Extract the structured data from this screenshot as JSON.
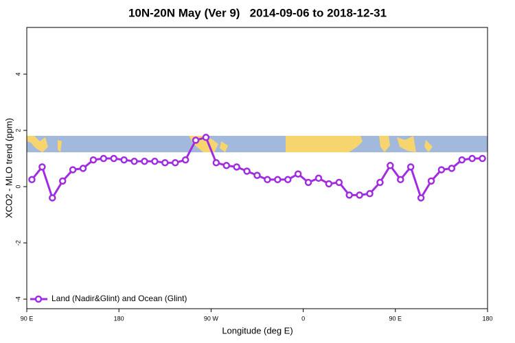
{
  "chart_data": {
    "type": "line",
    "title": "10N-20N May (Ver 9)   2014-09-06 to 2018-12-31",
    "x_label": "Longitude (deg E)",
    "y_label": "XCO2 - MLO trend (ppm)",
    "xlim": [
      90,
      540
    ],
    "ylim": [
      -4.34,
      5.66
    ],
    "xticks": [
      {
        "value": 90,
        "label": "90 E"
      },
      180,
      {
        "value": 270,
        "label": "90 W"
      },
      {
        "value": 360,
        "label": "0"
      },
      {
        "value": 450,
        "label": "90 E"
      },
      {
        "value": 540,
        "label": "180"
      }
    ],
    "yticks": [
      -4,
      -2,
      0,
      2,
      4
    ],
    "legend_position": "bottom-left",
    "x": [
      95,
      105,
      115,
      125,
      135,
      145,
      155,
      165,
      175,
      185,
      195,
      205,
      215,
      225,
      235,
      245,
      255,
      265,
      275,
      285,
      295,
      305,
      315,
      325,
      335,
      345,
      355,
      365,
      375,
      385,
      395,
      405,
      415,
      425,
      435,
      445,
      455,
      465,
      475,
      485,
      495,
      505,
      515,
      525,
      535
    ],
    "series": [
      {
        "name": "Land (Nadir&Glint) and Ocean (Glint)",
        "color": "#a02be0",
        "values": [
          0.25,
          0.7,
          -0.4,
          0.2,
          0.6,
          0.65,
          0.95,
          1.0,
          1.0,
          0.95,
          0.9,
          0.9,
          0.9,
          0.85,
          0.85,
          0.95,
          1.65,
          1.75,
          0.85,
          0.75,
          0.7,
          0.55,
          0.4,
          0.25,
          0.25,
          0.25,
          0.45,
          0.15,
          0.3,
          0.1,
          0.15,
          -0.3,
          -0.3,
          -0.25,
          0.15,
          0.75,
          0.25,
          0.7,
          -0.4,
          0.2,
          0.6,
          0.65,
          0.95,
          1.0,
          1.0
        ]
      }
    ]
  }
}
